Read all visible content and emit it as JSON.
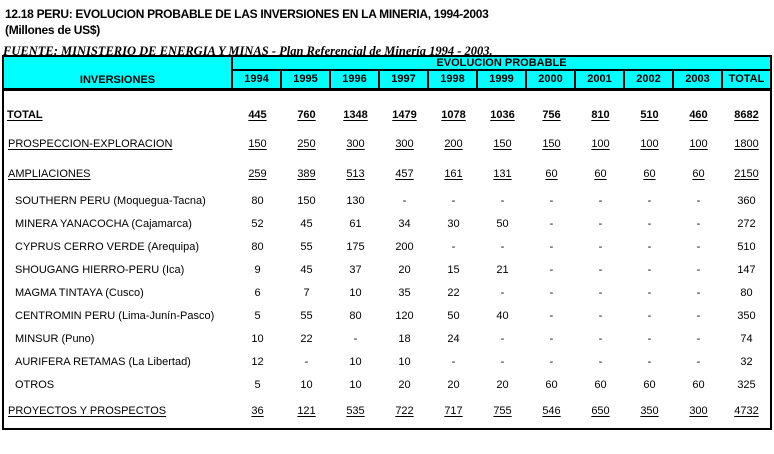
{
  "title": {
    "line1": "12.18  PERU: EVOLUCION PROBABLE DE LAS INVERSIONES EN LA MINERIA, 1994-2003",
    "line2": "(Millones de US$)"
  },
  "colors": {
    "header_bg": "#00ffff",
    "border": "#000000",
    "text": "#000000"
  },
  "table": {
    "corner_label": "INVERSIONES",
    "group_header": "EVOLUCION PROBABLE",
    "columns": [
      "1994",
      "1995",
      "1996",
      "1997",
      "1998",
      "1999",
      "2000",
      "2001",
      "2002",
      "2003",
      "TOTAL"
    ],
    "rows": [
      {
        "label": "TOTAL",
        "style": "total",
        "values": [
          "445",
          "760",
          "1348",
          "1479",
          "1078",
          "1036",
          "756",
          "810",
          "510",
          "460",
          "8682"
        ]
      },
      {
        "label": "PROSPECCION-EXPLORACION",
        "style": "group",
        "values": [
          "150",
          "250",
          "300",
          "300",
          "200",
          "150",
          "150",
          "100",
          "100",
          "100",
          "1800"
        ]
      },
      {
        "label": "AMPLIACIONES",
        "style": "group",
        "values": [
          "259",
          "389",
          "513",
          "457",
          "161",
          "131",
          "60",
          "60",
          "60",
          "60",
          "2150"
        ]
      },
      {
        "label": "SOUTHERN PERU (Moquegua-Tacna)",
        "style": "item",
        "values": [
          "80",
          "150",
          "130",
          "-",
          "-",
          "-",
          "-",
          "-",
          "-",
          "-",
          "360"
        ]
      },
      {
        "label": "MINERA YANACOCHA (Cajamarca)",
        "style": "item",
        "values": [
          "52",
          "45",
          "61",
          "34",
          "30",
          "50",
          "-",
          "-",
          "-",
          "-",
          "272"
        ]
      },
      {
        "label": "CYPRUS CERRO VERDE (Arequipa)",
        "style": "item",
        "values": [
          "80",
          "55",
          "175",
          "200",
          "-",
          "-",
          "-",
          "-",
          "-",
          "-",
          "510"
        ]
      },
      {
        "label": "SHOUGANG HIERRO-PERU (Ica)",
        "style": "item",
        "values": [
          "9",
          "45",
          "37",
          "20",
          "15",
          "21",
          "-",
          "-",
          "-",
          "-",
          "147"
        ]
      },
      {
        "label": "MAGMA TINTAYA (Cusco)",
        "style": "item",
        "values": [
          "6",
          "7",
          "10",
          "35",
          "22",
          "-",
          "-",
          "-",
          "-",
          "-",
          "80"
        ]
      },
      {
        "label": "CENTROMIN PERU (Lima-Junín-Pasco)",
        "style": "item",
        "values": [
          "5",
          "55",
          "80",
          "120",
          "50",
          "40",
          "-",
          "-",
          "-",
          "-",
          "350"
        ]
      },
      {
        "label": "MINSUR (Puno)",
        "style": "item",
        "values": [
          "10",
          "22",
          "-",
          "18",
          "24",
          "-",
          "-",
          "-",
          "-",
          "-",
          "74"
        ]
      },
      {
        "label": "AURIFERA RETAMAS (La Libertad)",
        "style": "item",
        "values": [
          "12",
          "-",
          "10",
          "10",
          "-",
          "-",
          "-",
          "-",
          "-",
          "-",
          "32"
        ]
      },
      {
        "label": "OTROS",
        "style": "item",
        "values": [
          "5",
          "10",
          "10",
          "20",
          "20",
          "20",
          "60",
          "60",
          "60",
          "60",
          "325"
        ]
      },
      {
        "label": "PROYECTOS Y PROSPECTOS",
        "style": "group",
        "values": [
          "36",
          "121",
          "535",
          "722",
          "717",
          "755",
          "546",
          "650",
          "350",
          "300",
          "4732"
        ]
      }
    ]
  },
  "footer": "FUENTE: MINISTERIO DE ENERGIA Y MINAS - Plan Referencial de Minería 1994 - 2003."
}
